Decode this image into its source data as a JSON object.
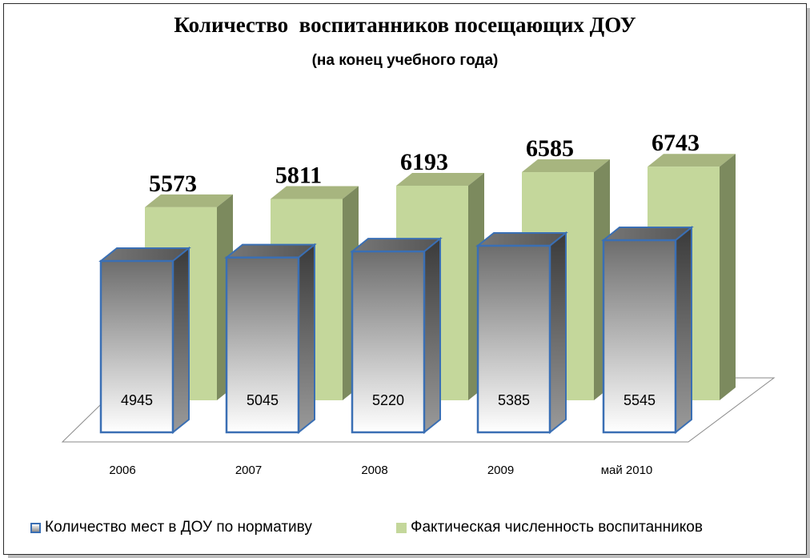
{
  "title": "Количество  воспитанников посещающих ДОУ",
  "subtitle": "(на конец учебного года)",
  "colors": {
    "series_a_border": "#3a6fb4",
    "series_b_front": "#c4d79b",
    "series_b_side": "#7c8a5e"
  },
  "chart_data": {
    "type": "bar",
    "style": "3d-clustered",
    "categories": [
      "2006",
      "2007",
      "2008",
      "2009",
      "май 2010"
    ],
    "series": [
      {
        "name": "Количество мест в ДОУ по нормативу",
        "values": [
          4945,
          5045,
          5220,
          5385,
          5545
        ]
      },
      {
        "name": "Фактическая численность воспитанников",
        "values": [
          5573,
          5811,
          6193,
          6585,
          6743
        ]
      }
    ],
    "ylim": [
      0,
      8000
    ],
    "grid": false,
    "legend_position": "bottom"
  },
  "legend": {
    "item_a": "Количество мест в ДОУ по нормативу",
    "item_b": "Фактическая численность воспитанников"
  }
}
